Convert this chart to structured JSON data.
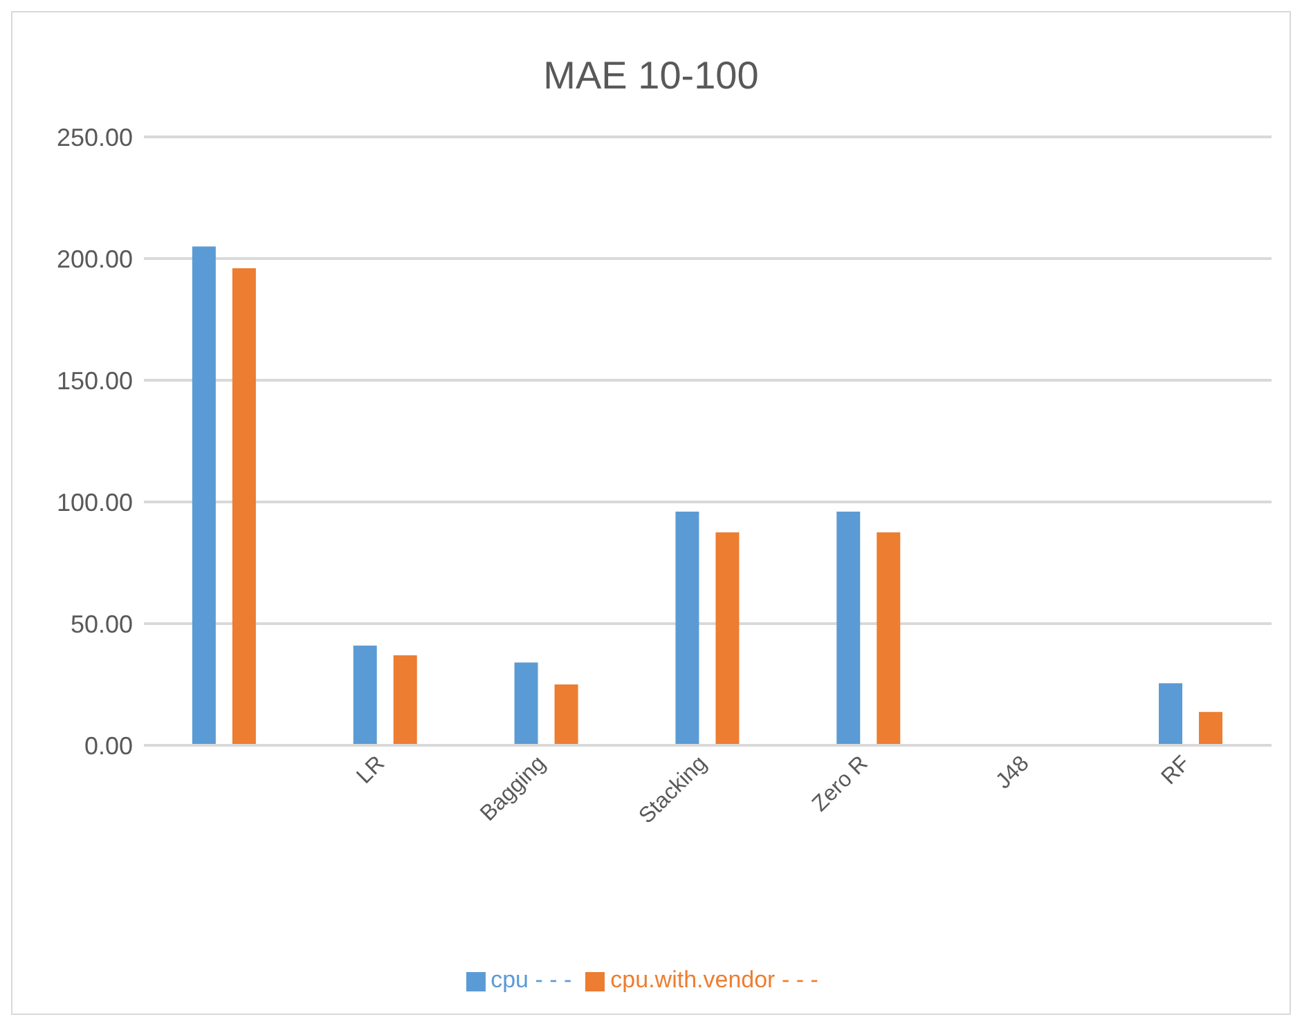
{
  "chart_data": {
    "type": "bar",
    "title": "MAE 10-100",
    "categories": [
      null,
      "LR",
      "Bagging",
      "Stacking",
      "Zero R",
      "J48",
      "RF"
    ],
    "series": [
      {
        "name": "cpu - - -",
        "color": "#5b9bd5",
        "values": [
          205,
          41,
          34,
          96,
          96,
          0,
          25.5
        ]
      },
      {
        "name": "cpu.with.vendor - - -",
        "color": "#ed7d31",
        "values": [
          196,
          37,
          25,
          87.5,
          87.5,
          0,
          13.7
        ]
      }
    ],
    "ylim": [
      0,
      250
    ],
    "yticks": [
      {
        "value": 0,
        "label": "0.00"
      },
      {
        "value": 50,
        "label": "50.00"
      },
      {
        "value": 100,
        "label": "100.00"
      },
      {
        "value": 150,
        "label": "150.00"
      },
      {
        "value": 200,
        "label": "200.00"
      },
      {
        "value": 250,
        "label": "250.00"
      }
    ],
    "grid": "y",
    "legend": "bottom"
  }
}
